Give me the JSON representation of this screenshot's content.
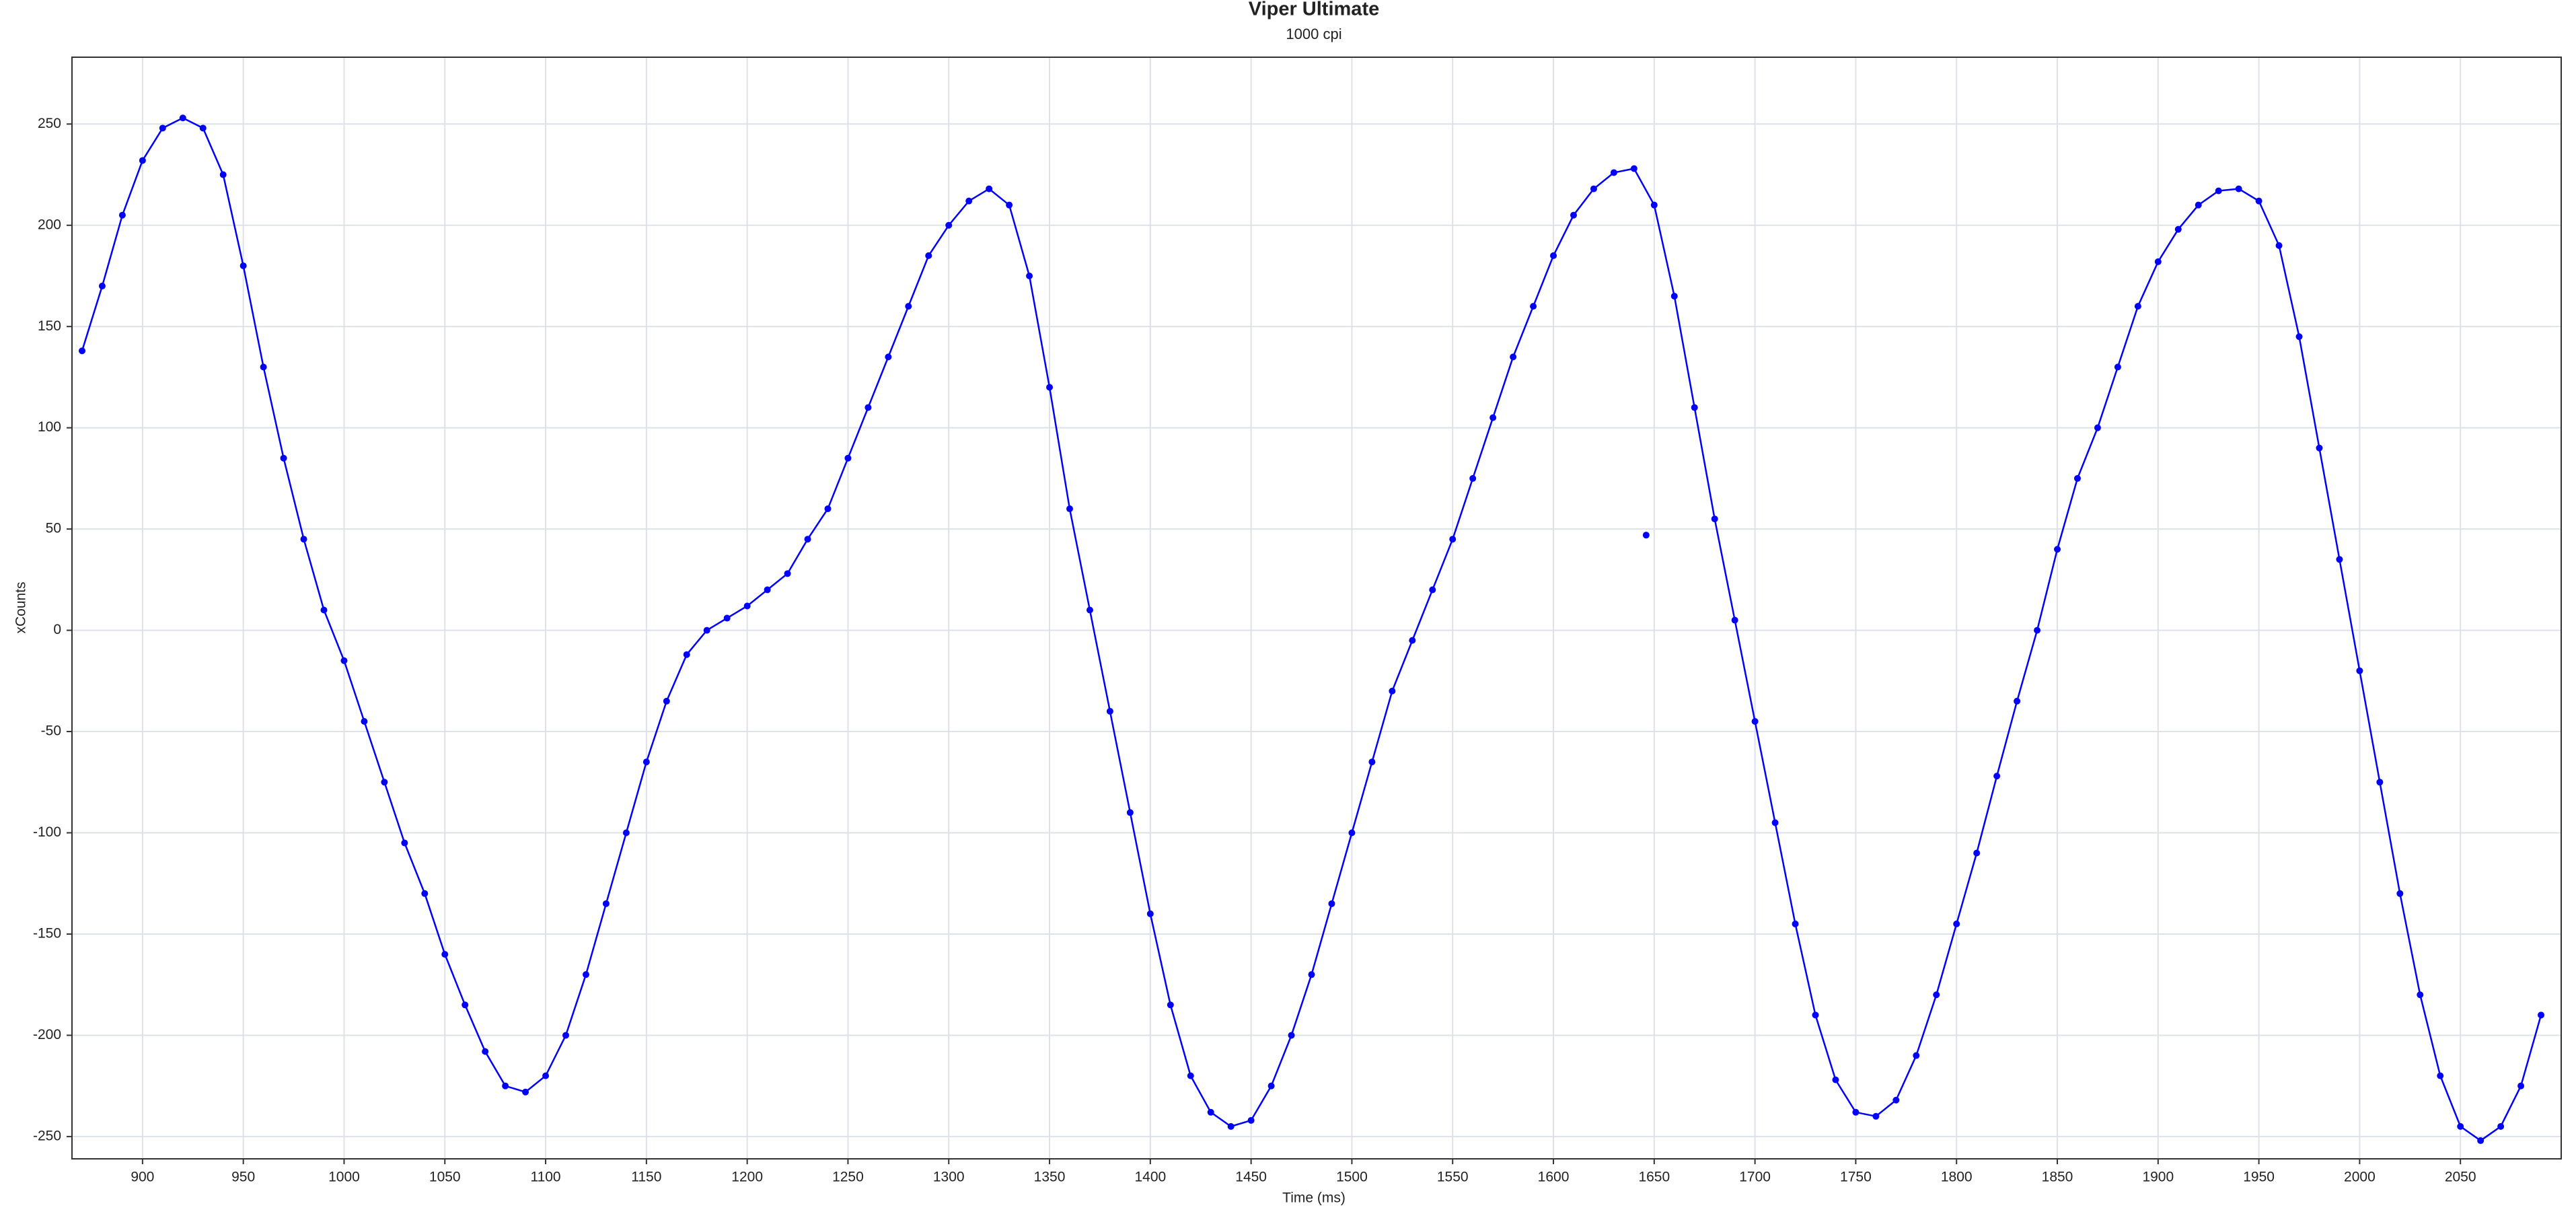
{
  "chart_data": {
    "type": "scatter",
    "title": "Viper Ultimate",
    "subtitle": "1000 cpi",
    "x_label": "Time (ms)",
    "y_label": "xCounts",
    "xlim": [
      865,
      2100
    ],
    "ylim": [
      -261,
      283
    ],
    "xticks": [
      900,
      950,
      1000,
      1050,
      1100,
      1150,
      1200,
      1250,
      1300,
      1350,
      1400,
      1450,
      1500,
      1550,
      1600,
      1650,
      1700,
      1750,
      1800,
      1850,
      1900,
      1950,
      2000,
      2050
    ],
    "yticks": [
      -250,
      -200,
      -150,
      -100,
      -50,
      0,
      50,
      100,
      150,
      200,
      250
    ],
    "grid": true,
    "series": [
      {
        "color": "#0000ff",
        "line": true,
        "x": [
          870,
          880,
          890,
          900,
          910,
          920,
          930,
          940,
          950,
          960,
          970,
          980,
          990,
          1000,
          1010,
          1020,
          1030,
          1040,
          1050,
          1060,
          1070,
          1080,
          1090,
          1100,
          1110,
          1120,
          1130,
          1140,
          1150,
          1160,
          1170,
          1180,
          1190,
          1200,
          1210,
          1220,
          1230,
          1240,
          1250,
          1260,
          1270,
          1280,
          1290,
          1300,
          1310,
          1320,
          1330,
          1340,
          1350,
          1360,
          1370,
          1380,
          1390,
          1400,
          1410,
          1420,
          1430,
          1440,
          1450,
          1460,
          1470,
          1480,
          1490,
          1500,
          1510,
          1520,
          1530,
          1540,
          1550,
          1560,
          1570,
          1580,
          1590,
          1600,
          1610,
          1620,
          1630,
          1640,
          1650,
          1660,
          1670,
          1680,
          1690,
          1700,
          1710,
          1720,
          1730,
          1740,
          1750,
          1760,
          1770,
          1780,
          1790,
          1800,
          1810,
          1820,
          1830,
          1840,
          1850,
          1860,
          1870,
          1880,
          1890,
          1900,
          1910,
          1920,
          1930,
          1940,
          1950,
          1960,
          1970,
          1980,
          1990,
          2000,
          2010,
          2020,
          2030,
          2040,
          2050,
          2060,
          2070,
          2080,
          2090
        ],
        "values": [
          138,
          170,
          205,
          232,
          248,
          253,
          248,
          225,
          180,
          130,
          85,
          45,
          10,
          -15,
          -45,
          -75,
          -105,
          -130,
          -160,
          -185,
          -208,
          -225,
          -228,
          -220,
          -200,
          -170,
          -135,
          -100,
          -65,
          -35,
          -12,
          0,
          6,
          12,
          20,
          28,
          45,
          60,
          85,
          110,
          135,
          160,
          185,
          200,
          212,
          218,
          210,
          175,
          120,
          60,
          10,
          -40,
          -90,
          -140,
          -185,
          -220,
          -238,
          -245,
          -242,
          -225,
          -200,
          -170,
          -135,
          -100,
          -65,
          -30,
          -5,
          20,
          45,
          75,
          105,
          135,
          160,
          185,
          205,
          218,
          226,
          228,
          210,
          165,
          110,
          55,
          5,
          -45,
          -95,
          -145,
          -190,
          -222,
          -238,
          -240,
          -232,
          -210,
          -180,
          -145,
          -110,
          -72,
          -35,
          0,
          40,
          75,
          100,
          130,
          160,
          182,
          198,
          210,
          217,
          218,
          212,
          190,
          145,
          90,
          35,
          -20,
          -75,
          -130,
          -180,
          -220,
          -245,
          -252,
          -245,
          -225,
          -190
        ]
      },
      {
        "color": "#0000ff",
        "line": false,
        "x": [
          1646
        ],
        "values": [
          47
        ]
      }
    ]
  }
}
